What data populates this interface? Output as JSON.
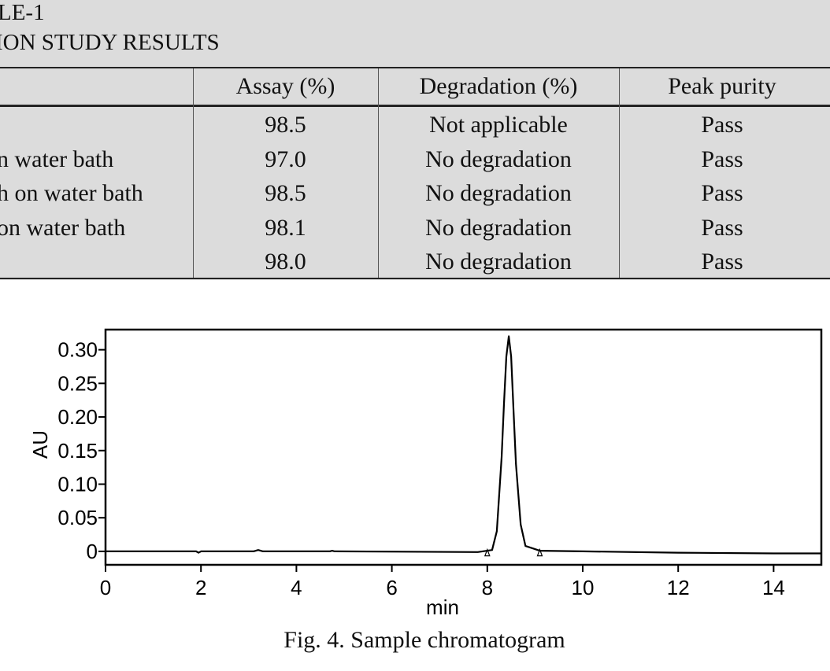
{
  "table": {
    "caption_line1": "LE-1",
    "caption_line2": "ION STUDY RESULTS",
    "headers": [
      "",
      "Assay (%)",
      "Degradation (%)",
      "Peak purity"
    ],
    "rows": [
      {
        "condition": "",
        "assay": "98.5",
        "degradation": "Not applicable",
        "purity": "Pass"
      },
      {
        "condition": "n water bath",
        "assay": "97.0",
        "degradation": "No degradation",
        "purity": "Pass"
      },
      {
        "condition": "h on water bath",
        "assay": "98.5",
        "degradation": "No degradation",
        "purity": "Pass"
      },
      {
        "condition": "on water bath",
        "assay": "98.1",
        "degradation": "No degradation",
        "purity": "Pass"
      },
      {
        "condition": "",
        "assay": "98.0",
        "degradation": "No degradation",
        "purity": "Pass"
      }
    ]
  },
  "figure": {
    "caption": "Fig. 4. Sample chromatogram"
  },
  "chart_data": {
    "type": "line",
    "title": "",
    "xlabel": "min",
    "ylabel": "AU",
    "xlim": [
      0,
      15
    ],
    "ylim": [
      -0.02,
      0.33
    ],
    "x_ticks": [
      0,
      2,
      4,
      6,
      8,
      10,
      12,
      14
    ],
    "x_tick_labels": [
      "0",
      "2",
      "4",
      "6",
      "8",
      "10",
      "12",
      "14"
    ],
    "y_ticks": [
      0,
      0.05,
      0.1,
      0.15,
      0.2,
      0.25,
      0.3
    ],
    "y_tick_labels": [
      "0",
      "0.05",
      "0.10",
      "0.15",
      "0.20",
      "0.25",
      "0.30"
    ],
    "grid": false,
    "series": [
      {
        "x": [
          0,
          1.9,
          1.95,
          2.0,
          3.1,
          3.2,
          3.3,
          4.7,
          4.75,
          4.8,
          7.8,
          8.1,
          8.2,
          8.3,
          8.35,
          8.4,
          8.45,
          8.5,
          8.55,
          8.6,
          8.7,
          8.8,
          9.1,
          10,
          12,
          14,
          15
        ],
        "y": [
          0,
          0,
          -0.002,
          0,
          0,
          0.002,
          0,
          0,
          0.001,
          0,
          -0.001,
          0.002,
          0.03,
          0.14,
          0.22,
          0.29,
          0.32,
          0.29,
          0.21,
          0.13,
          0.04,
          0.008,
          0.001,
          0,
          -0.002,
          -0.003,
          -0.003
        ]
      }
    ],
    "annotations": [
      {
        "type": "baseline-marker",
        "x": 8.0,
        "y": -0.002
      },
      {
        "type": "baseline-marker",
        "x": 9.1,
        "y": -0.002
      }
    ]
  }
}
